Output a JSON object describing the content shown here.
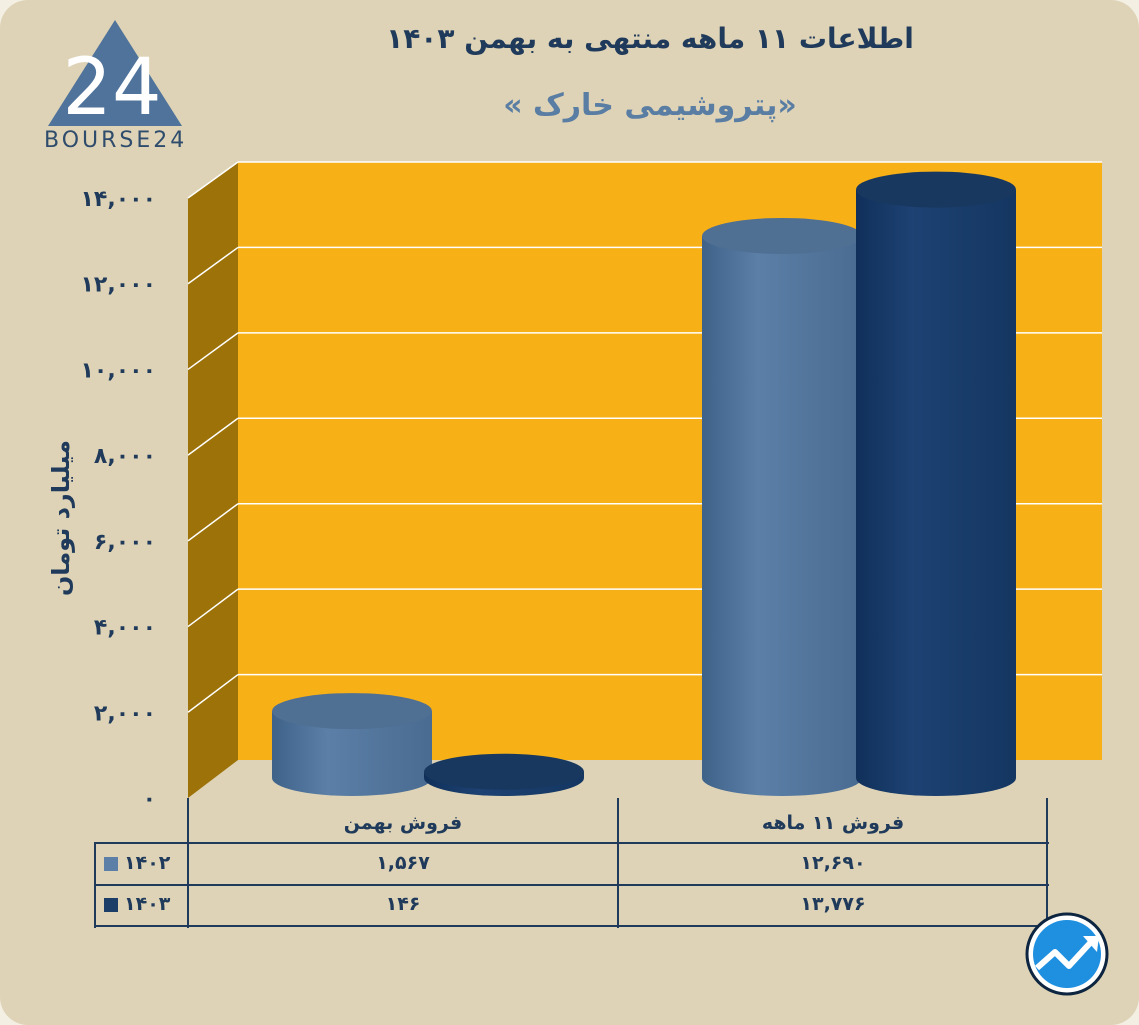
{
  "header": {
    "title": "اطلاعات ۱۱ ماهه منتهی به بهمن ۱۴۰۳",
    "subtitle": "«پتروشیمی خارک »"
  },
  "logo": {
    "text": "BOURSE24",
    "mark": "24"
  },
  "colors": {
    "background": "#ded3b6",
    "plot_back": "#f7b116",
    "plot_side": "#9c7209",
    "series_1402": "#5b7fa7",
    "series_1403": "#1a3e68",
    "text": "#1f3a5a"
  },
  "chart_data": {
    "type": "bar",
    "title": "اطلاعات ۱۱ ماهه منتهی به بهمن ۱۴۰۳",
    "subtitle": "«پتروشیمی خارک »",
    "ylabel": "میلیارد تومان",
    "xlabel": "",
    "ylim": [
      0,
      14000
    ],
    "yticks": [
      0,
      2000,
      4000,
      6000,
      8000,
      10000,
      12000,
      14000
    ],
    "ytick_labels": [
      "۰",
      "۲,۰۰۰",
      "۴,۰۰۰",
      "۶,۰۰۰",
      "۸,۰۰۰",
      "۱۰,۰۰۰",
      "۱۲,۰۰۰",
      "۱۴,۰۰۰"
    ],
    "categories": [
      "فروش بهمن",
      "فروش ۱۱ ماهه"
    ],
    "series": [
      {
        "name": "۱۴۰۲",
        "values": [
          1567,
          12690
        ],
        "labels": [
          "۱,۵۶۷",
          "۱۲,۶۹۰"
        ]
      },
      {
        "name": "۱۴۰۳",
        "values": [
          146,
          13776
        ],
        "labels": [
          "۱۴۶",
          "۱۳,۷۷۶"
        ]
      }
    ],
    "grid": true,
    "legend": "table-left"
  }
}
